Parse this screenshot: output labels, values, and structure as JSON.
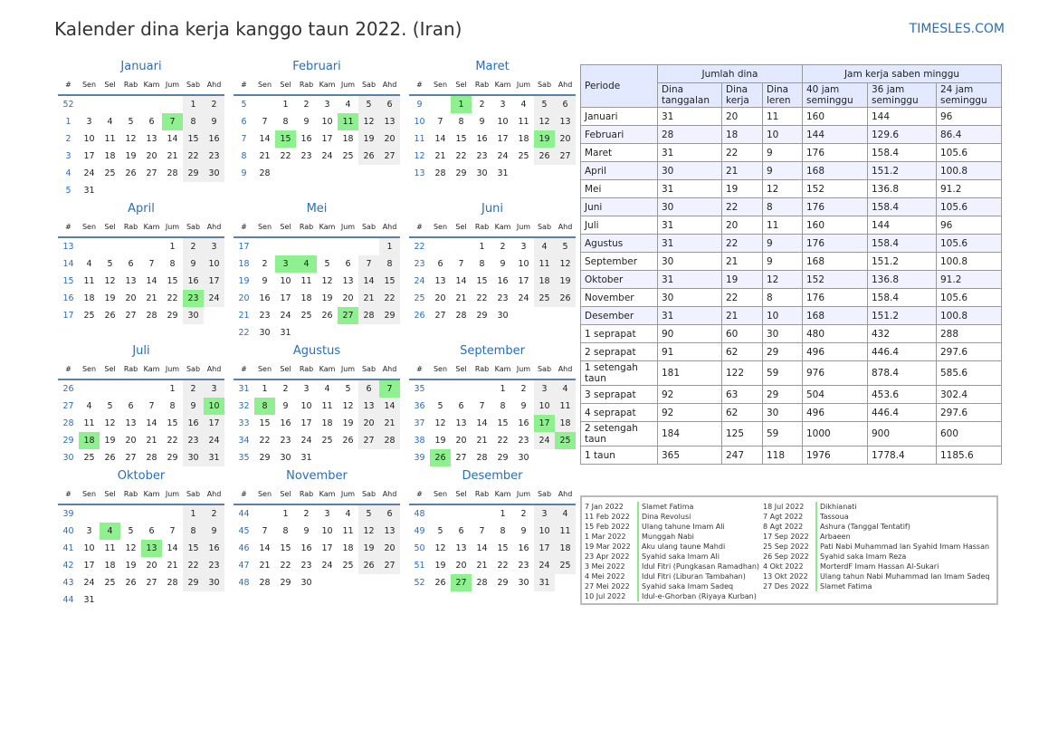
{
  "title": "Kalender dina kerja kanggo taun 2022. (Iran)",
  "brand": "TIMESLES.COM",
  "weekday_headers": [
    "#",
    "Sen",
    "Sel",
    "Rab",
    "Kam",
    "Jum",
    "Sab",
    "Ahd"
  ],
  "months": [
    {
      "name": "Januari",
      "weeks": [
        [
          52,
          "",
          "",
          "",
          "",
          "",
          1,
          2
        ],
        [
          1,
          3,
          4,
          5,
          6,
          7,
          8,
          9
        ],
        [
          2,
          10,
          11,
          12,
          13,
          14,
          15,
          16
        ],
        [
          3,
          17,
          18,
          19,
          20,
          21,
          22,
          23
        ],
        [
          4,
          24,
          25,
          26,
          27,
          28,
          29,
          30
        ],
        [
          5,
          31,
          "",
          "",
          "",
          "",
          "",
          ""
        ]
      ],
      "holidays": [
        7
      ]
    },
    {
      "name": "Februari",
      "weeks": [
        [
          5,
          "",
          1,
          2,
          3,
          4,
          5,
          6
        ],
        [
          6,
          7,
          8,
          9,
          10,
          11,
          12,
          13
        ],
        [
          7,
          14,
          15,
          16,
          17,
          18,
          19,
          20
        ],
        [
          8,
          21,
          22,
          23,
          24,
          25,
          26,
          27
        ],
        [
          9,
          28,
          "",
          "",
          "",
          "",
          "",
          ""
        ]
      ],
      "holidays": [
        11,
        15
      ]
    },
    {
      "name": "Maret",
      "weeks": [
        [
          9,
          "",
          1,
          2,
          3,
          4,
          5,
          6
        ],
        [
          10,
          7,
          8,
          9,
          10,
          11,
          12,
          13
        ],
        [
          11,
          14,
          15,
          16,
          17,
          18,
          19,
          20
        ],
        [
          12,
          21,
          22,
          23,
          24,
          25,
          26,
          27
        ],
        [
          13,
          28,
          29,
          30,
          31,
          "",
          "",
          ""
        ]
      ],
      "holidays": [
        1,
        19
      ]
    },
    {
      "name": "April",
      "weeks": [
        [
          13,
          "",
          "",
          "",
          "",
          1,
          2,
          3
        ],
        [
          14,
          4,
          5,
          6,
          7,
          8,
          9,
          10
        ],
        [
          15,
          11,
          12,
          13,
          14,
          15,
          16,
          17
        ],
        [
          16,
          18,
          19,
          20,
          21,
          22,
          23,
          24
        ],
        [
          17,
          25,
          26,
          27,
          28,
          29,
          30,
          ""
        ]
      ],
      "holidays": [
        23
      ]
    },
    {
      "name": "Mei",
      "weeks": [
        [
          17,
          "",
          "",
          "",
          "",
          "",
          "",
          1
        ],
        [
          18,
          2,
          3,
          4,
          5,
          6,
          7,
          8
        ],
        [
          19,
          9,
          10,
          11,
          12,
          13,
          14,
          15
        ],
        [
          20,
          16,
          17,
          18,
          19,
          20,
          21,
          22
        ],
        [
          21,
          23,
          24,
          25,
          26,
          27,
          28,
          29
        ],
        [
          22,
          30,
          31,
          "",
          "",
          "",
          "",
          ""
        ]
      ],
      "holidays": [
        3,
        4,
        27
      ]
    },
    {
      "name": "Juni",
      "weeks": [
        [
          22,
          "",
          "",
          1,
          2,
          3,
          4,
          5
        ],
        [
          23,
          6,
          7,
          8,
          9,
          10,
          11,
          12
        ],
        [
          24,
          13,
          14,
          15,
          16,
          17,
          18,
          19
        ],
        [
          25,
          20,
          21,
          22,
          23,
          24,
          25,
          26
        ],
        [
          26,
          27,
          28,
          29,
          30,
          "",
          "",
          ""
        ]
      ],
      "holidays": []
    },
    {
      "name": "Juli",
      "weeks": [
        [
          26,
          "",
          "",
          "",
          "",
          1,
          2,
          3
        ],
        [
          27,
          4,
          5,
          6,
          7,
          8,
          9,
          10
        ],
        [
          28,
          11,
          12,
          13,
          14,
          15,
          16,
          17
        ],
        [
          29,
          18,
          19,
          20,
          21,
          22,
          23,
          24
        ],
        [
          30,
          25,
          26,
          27,
          28,
          29,
          30,
          31
        ]
      ],
      "holidays": [
        10,
        18
      ]
    },
    {
      "name": "Agustus",
      "weeks": [
        [
          31,
          1,
          2,
          3,
          4,
          5,
          6,
          7
        ],
        [
          32,
          8,
          9,
          10,
          11,
          12,
          13,
          14
        ],
        [
          33,
          15,
          16,
          17,
          18,
          19,
          20,
          21
        ],
        [
          34,
          22,
          23,
          24,
          25,
          26,
          27,
          28
        ],
        [
          35,
          29,
          30,
          31,
          "",
          "",
          "",
          ""
        ]
      ],
      "holidays": [
        7,
        8
      ]
    },
    {
      "name": "September",
      "weeks": [
        [
          35,
          "",
          "",
          "",
          1,
          2,
          3,
          4
        ],
        [
          36,
          5,
          6,
          7,
          8,
          9,
          10,
          11
        ],
        [
          37,
          12,
          13,
          14,
          15,
          16,
          17,
          18
        ],
        [
          38,
          19,
          20,
          21,
          22,
          23,
          24,
          25
        ],
        [
          39,
          26,
          27,
          28,
          29,
          30,
          "",
          ""
        ]
      ],
      "holidays": [
        17,
        25,
        26
      ]
    },
    {
      "name": "Oktober",
      "weeks": [
        [
          39,
          "",
          "",
          "",
          "",
          "",
          1,
          2
        ],
        [
          40,
          3,
          4,
          5,
          6,
          7,
          8,
          9
        ],
        [
          41,
          10,
          11,
          12,
          13,
          14,
          15,
          16
        ],
        [
          42,
          17,
          18,
          19,
          20,
          21,
          22,
          23
        ],
        [
          43,
          24,
          25,
          26,
          27,
          28,
          29,
          30
        ],
        [
          44,
          31,
          "",
          "",
          "",
          "",
          "",
          ""
        ]
      ],
      "holidays": [
        4,
        13
      ]
    },
    {
      "name": "November",
      "weeks": [
        [
          44,
          "",
          1,
          2,
          3,
          4,
          5,
          6
        ],
        [
          45,
          7,
          8,
          9,
          10,
          11,
          12,
          13
        ],
        [
          46,
          14,
          15,
          16,
          17,
          18,
          19,
          20
        ],
        [
          47,
          21,
          22,
          23,
          24,
          25,
          26,
          27
        ],
        [
          48,
          28,
          29,
          30,
          "",
          "",
          "",
          ""
        ]
      ],
      "holidays": []
    },
    {
      "name": "Desember",
      "weeks": [
        [
          48,
          "",
          "",
          "",
          1,
          2,
          3,
          4
        ],
        [
          49,
          5,
          6,
          7,
          8,
          9,
          10,
          11
        ],
        [
          50,
          12,
          13,
          14,
          15,
          16,
          17,
          18
        ],
        [
          51,
          19,
          20,
          21,
          22,
          23,
          24,
          25
        ],
        [
          52,
          26,
          27,
          28,
          29,
          30,
          31,
          ""
        ]
      ],
      "holidays": [
        27
      ]
    }
  ],
  "stats": {
    "period_header": "Periode",
    "days_group": "Jumlah dina",
    "hours_group": "Jam kerja saben minggu",
    "columns": [
      "Dina tanggalan",
      "Dina kerja",
      "Dina leren",
      "40 jam seminggu",
      "36 jam seminggu",
      "24 jam seminggu"
    ],
    "rows": [
      [
        "Januari",
        "31",
        "20",
        "11",
        "160",
        "144",
        "96"
      ],
      [
        "Februari",
        "28",
        "18",
        "10",
        "144",
        "129.6",
        "86.4"
      ],
      [
        "Maret",
        "31",
        "22",
        "9",
        "176",
        "158.4",
        "105.6"
      ],
      [
        "April",
        "30",
        "21",
        "9",
        "168",
        "151.2",
        "100.8"
      ],
      [
        "Mei",
        "31",
        "19",
        "12",
        "152",
        "136.8",
        "91.2"
      ],
      [
        "Juni",
        "30",
        "22",
        "8",
        "176",
        "158.4",
        "105.6"
      ],
      [
        "Juli",
        "31",
        "20",
        "11",
        "160",
        "144",
        "96"
      ],
      [
        "Agustus",
        "31",
        "22",
        "9",
        "176",
        "158.4",
        "105.6"
      ],
      [
        "September",
        "30",
        "21",
        "9",
        "168",
        "151.2",
        "100.8"
      ],
      [
        "Oktober",
        "31",
        "19",
        "12",
        "152",
        "136.8",
        "91.2"
      ],
      [
        "November",
        "30",
        "22",
        "8",
        "176",
        "158.4",
        "105.6"
      ],
      [
        "Desember",
        "31",
        "21",
        "10",
        "168",
        "151.2",
        "100.8"
      ],
      [
        "1 seprapat",
        "90",
        "60",
        "30",
        "480",
        "432",
        "288"
      ],
      [
        "2 seprapat",
        "91",
        "62",
        "29",
        "496",
        "446.4",
        "297.6"
      ],
      [
        "1 setengah taun",
        "181",
        "122",
        "59",
        "976",
        "878.4",
        "585.6"
      ],
      [
        "3 seprapat",
        "92",
        "63",
        "29",
        "504",
        "453.6",
        "302.4"
      ],
      [
        "4 seprapat",
        "92",
        "62",
        "30",
        "496",
        "446.4",
        "297.6"
      ],
      [
        "2 setengah taun",
        "184",
        "125",
        "59",
        "1000",
        "900",
        "600"
      ],
      [
        "1 taun",
        "365",
        "247",
        "118",
        "1976",
        "1778.4",
        "1185.6"
      ]
    ]
  },
  "holidays_list": [
    [
      [
        "7 Jan 2022",
        "Slamet Fatima"
      ],
      [
        "11 Feb 2022",
        "Dina Revolusi"
      ],
      [
        "15 Feb 2022",
        "Ulang tahune Imam Ali"
      ],
      [
        "1 Mar 2022",
        "Munggah Nabi"
      ],
      [
        "19 Mar 2022",
        "Aku ulang taune Mahdi"
      ],
      [
        "23 Apr 2022",
        "Syahid saka Imam Ali"
      ],
      [
        "3 Mei 2022",
        "Idul Fitri (Pungkasan Ramadhan)"
      ],
      [
        "4 Mei 2022",
        "Idul Fitri (Liburan Tambahan)"
      ],
      [
        "27 Mei 2022",
        "Syahid saka Imam Sadeq"
      ],
      [
        "10 Jul 2022",
        "Idul-e-Ghorban (Riyaya Kurban)"
      ]
    ],
    [
      [
        "18 Jul 2022",
        "Dikhianati"
      ],
      [
        "7 Agt 2022",
        "Tassoua"
      ],
      [
        "8 Agt 2022",
        "Ashura (Tanggal Tentatif)"
      ],
      [
        "17 Sep 2022",
        "Arbaeen"
      ],
      [
        "25 Sep 2022",
        "Pati Nabi Muhammad lan Syahid Imam Hassan"
      ],
      [
        "26 Sep 2022",
        "Syahid saka Imam Reza"
      ],
      [
        "4 Okt 2022",
        "MorterdF Imam Hassan Al-Sukari"
      ],
      [
        "13 Okt 2022",
        "Ulang tahun Nabi Muhammad lan Imam Sadeq"
      ],
      [
        "27 Des 2022",
        "Slamet Fatima"
      ]
    ]
  ]
}
